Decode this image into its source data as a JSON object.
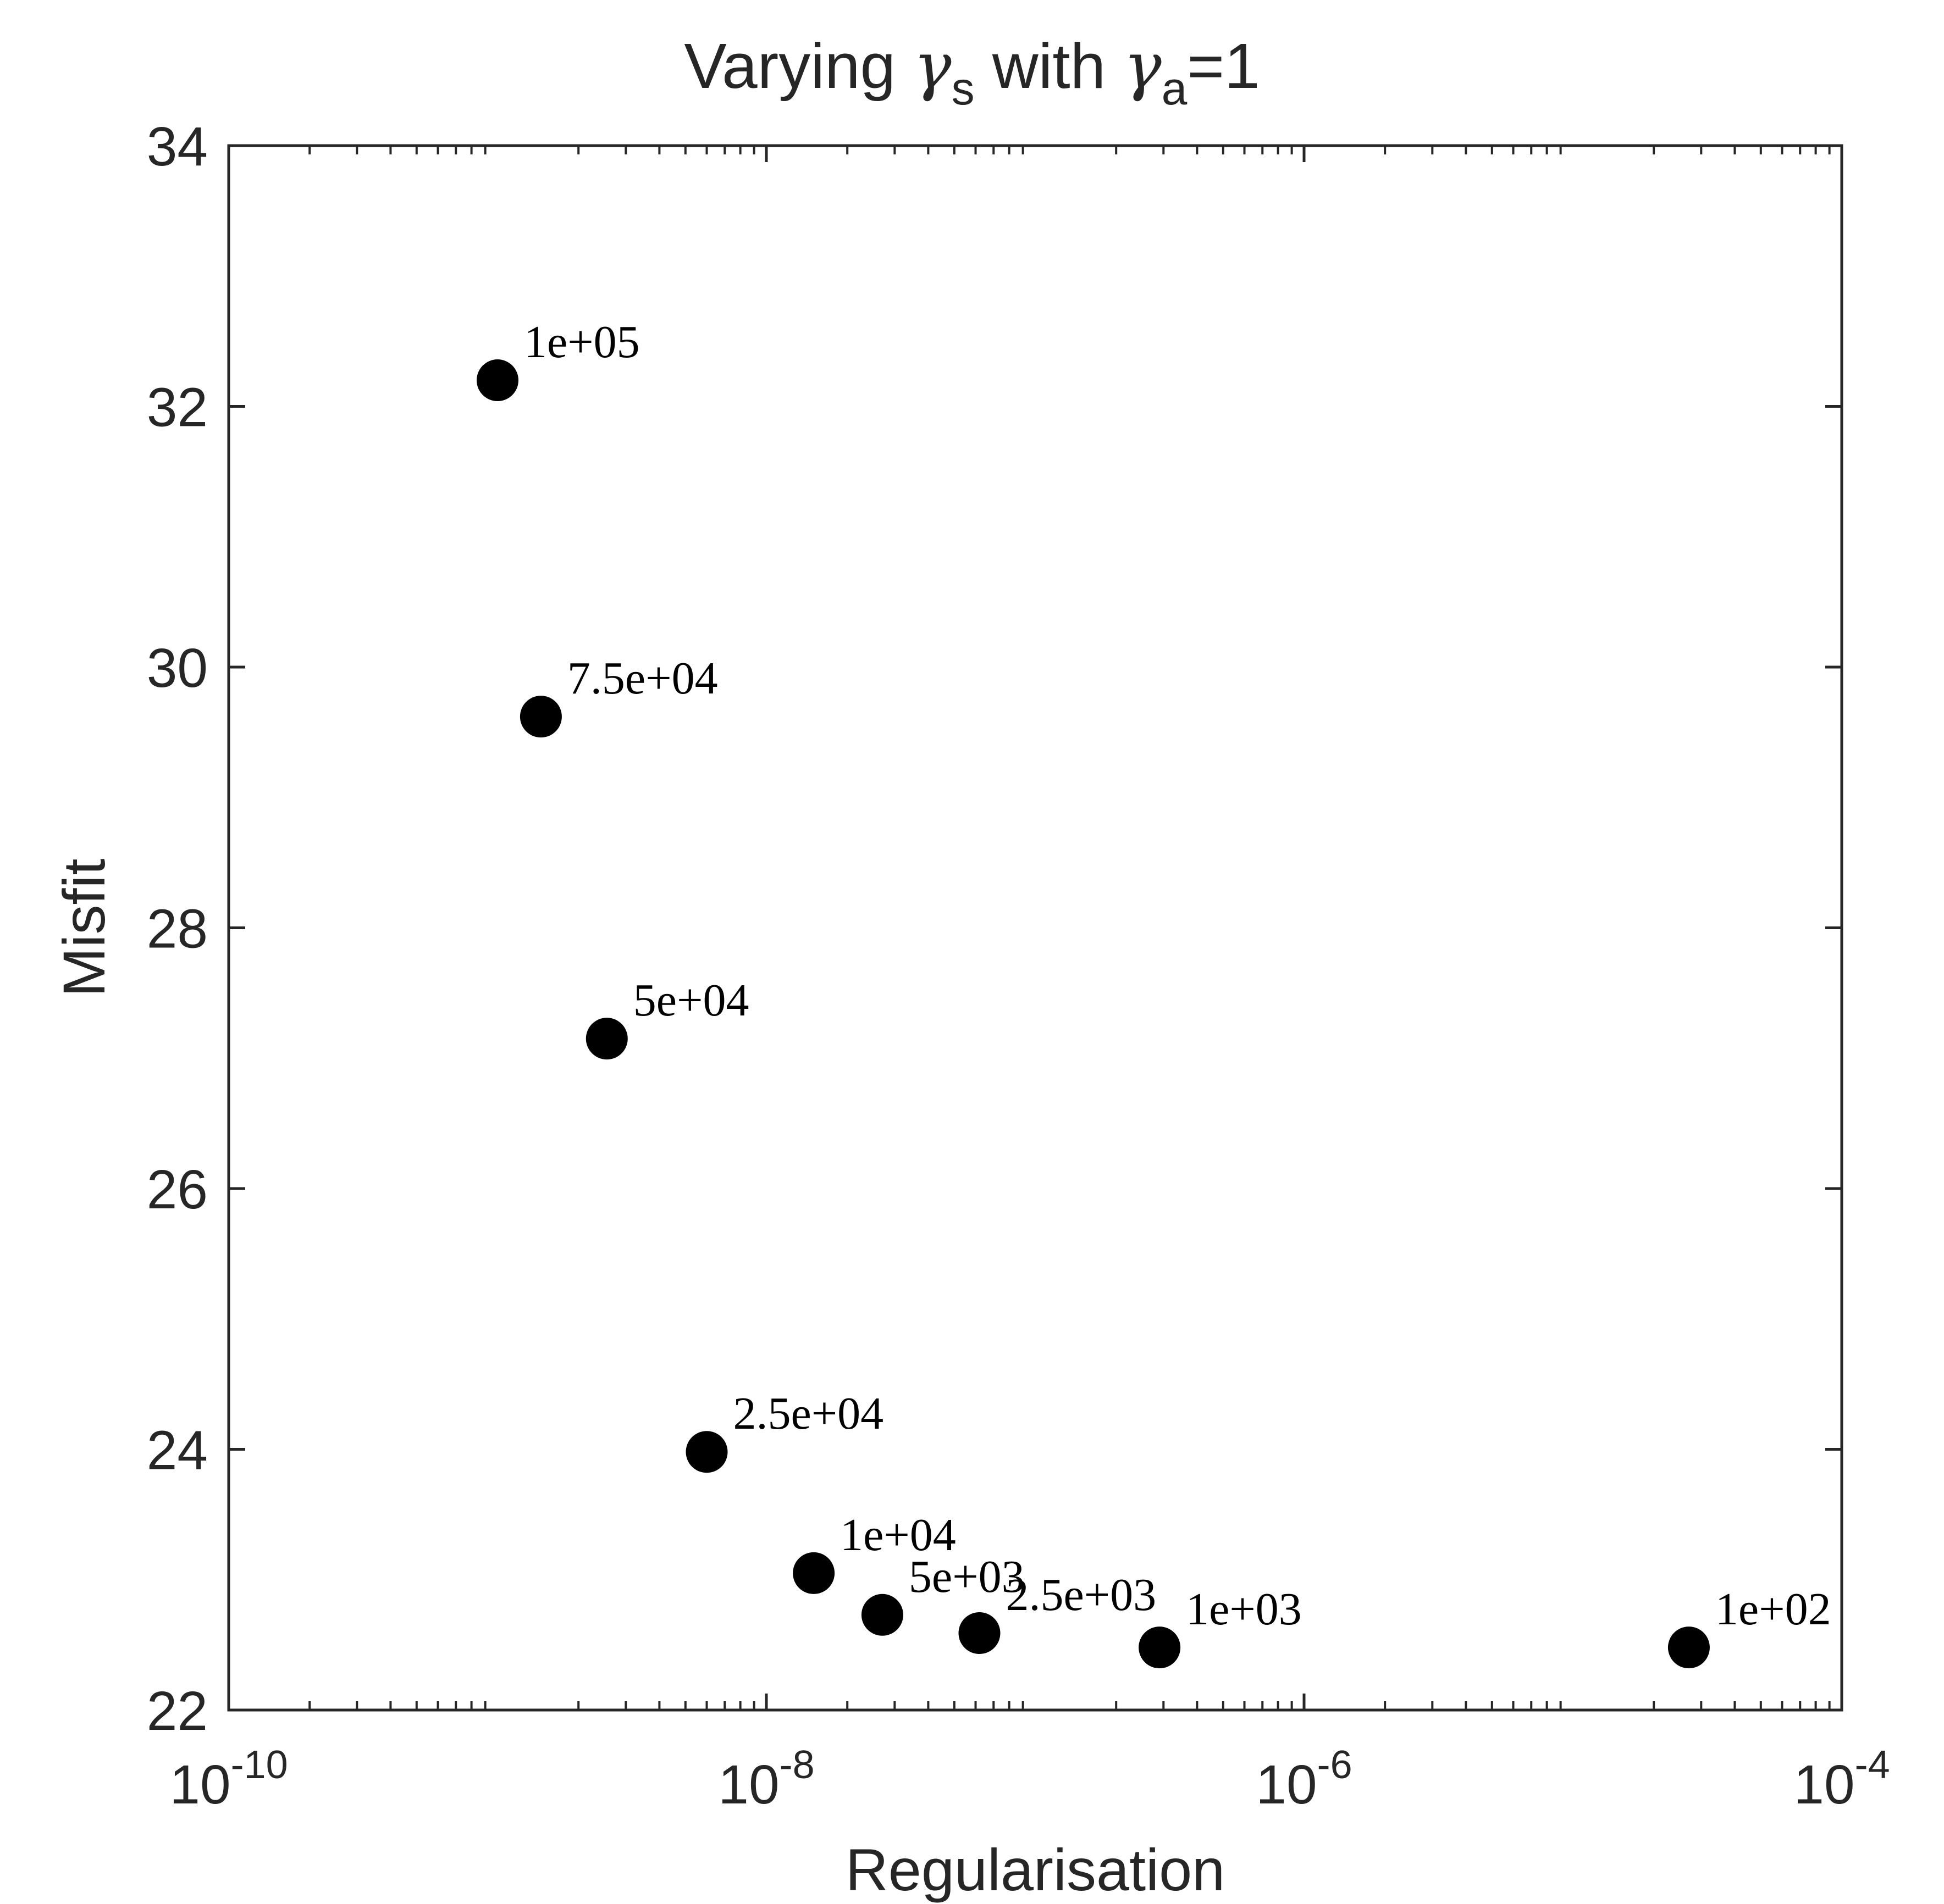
{
  "chart_data": {
    "type": "scatter",
    "title": {
      "prefix": "Varying ",
      "sym1": "γ",
      "sub1": "s",
      "mid": " with ",
      "sym2": "γ",
      "sub2": "a",
      "suffix": "=1"
    },
    "xlabel": "Regularisation",
    "ylabel": "Misfit",
    "xscale": "log",
    "xlim": [
      1e-10,
      0.0001
    ],
    "ylim": [
      22,
      34
    ],
    "x_ticks": [
      {
        "value": 1e-10,
        "base": "10",
        "exp": "-10"
      },
      {
        "value": 1e-08,
        "base": "10",
        "exp": "-8"
      },
      {
        "value": 1e-06,
        "base": "10",
        "exp": "-6"
      },
      {
        "value": 0.0001,
        "base": "10",
        "exp": "-4"
      }
    ],
    "y_ticks": [
      22,
      24,
      26,
      28,
      30,
      32,
      34
    ],
    "grid": false,
    "marker_color": "#000000",
    "points": [
      {
        "x": 1e-09,
        "y": 32.2,
        "label": "1e+05"
      },
      {
        "x": 1.45e-09,
        "y": 29.62,
        "label": "7.5e+04"
      },
      {
        "x": 2.55e-09,
        "y": 27.15,
        "label": "5e+04"
      },
      {
        "x": 6e-09,
        "y": 23.98,
        "label": "2.5e+04"
      },
      {
        "x": 1.5e-08,
        "y": 23.05,
        "label": "1e+04"
      },
      {
        "x": 2.7e-08,
        "y": 22.73,
        "label": "5e+03"
      },
      {
        "x": 6.2e-08,
        "y": 22.59,
        "label": "2.5e+03"
      },
      {
        "x": 2.9e-07,
        "y": 22.48,
        "label": "1e+03"
      },
      {
        "x": 2.7e-05,
        "y": 22.48,
        "label": "1e+02"
      }
    ]
  }
}
